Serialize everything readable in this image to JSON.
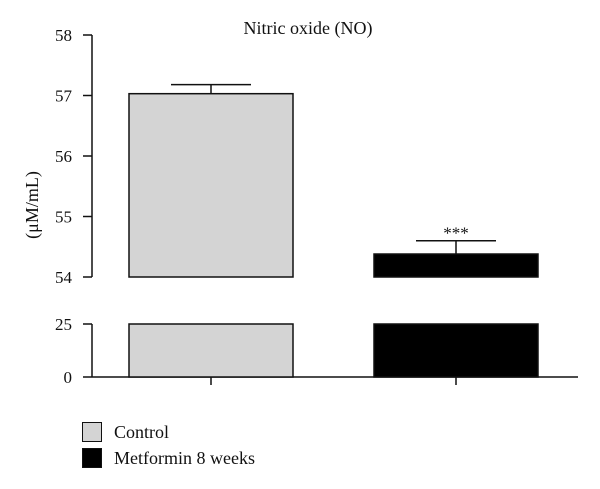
{
  "chart_data": {
    "type": "bar",
    "title": "Nitric oxide (NO)",
    "ylabel": "(μM/mL)",
    "xlabel": "",
    "categories": [
      "Control",
      "Metformin 8 weeks"
    ],
    "values": [
      57.03,
      54.38
    ],
    "errors": [
      0.15,
      0.22
    ],
    "colors": [
      "#d4d4d4",
      "#000000"
    ],
    "annotations": [
      {
        "category": "Metformin 8 weeks",
        "text": "***"
      }
    ],
    "axis_break": true,
    "upper_ylim": [
      54,
      58
    ],
    "upper_ticks": [
      "54",
      "55",
      "56",
      "57",
      "58"
    ],
    "lower_ylim": [
      0,
      25
    ],
    "lower_ticks": [
      "0",
      "25"
    ],
    "grid": false,
    "legend_position": "bottom-left"
  },
  "legend": {
    "items": [
      {
        "label": "Control",
        "color": "#d4d4d4"
      },
      {
        "label": "Metformin 8 weeks",
        "color": "#000000"
      }
    ]
  }
}
